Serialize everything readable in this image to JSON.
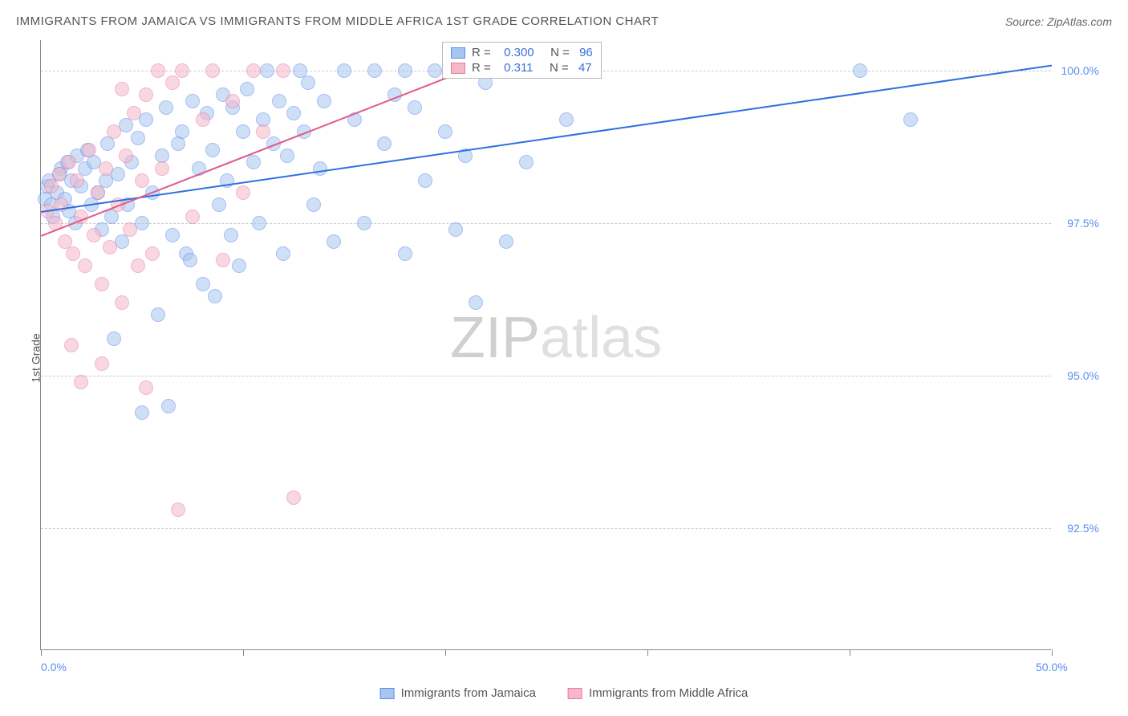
{
  "title": "IMMIGRANTS FROM JAMAICA VS IMMIGRANTS FROM MIDDLE AFRICA 1ST GRADE CORRELATION CHART",
  "source": "Source: ZipAtlas.com",
  "y_axis_label": "1st Grade",
  "watermark_a": "ZIP",
  "watermark_b": "atlas",
  "chart": {
    "type": "scatter",
    "xlim": [
      0,
      50
    ],
    "ylim": [
      90.5,
      100.5
    ],
    "x_ticks": [
      0,
      10,
      20,
      30,
      40,
      50
    ],
    "x_tick_labels": {
      "0": "0.0%",
      "50": "50.0%"
    },
    "y_ticks": [
      92.5,
      95.0,
      97.5,
      100.0
    ],
    "y_tick_labels": [
      "92.5%",
      "95.0%",
      "97.5%",
      "100.0%"
    ],
    "grid_color": "#cccccc",
    "background_color": "#ffffff",
    "marker_radius": 9,
    "marker_opacity": 0.55,
    "series": [
      {
        "name": "Immigrants from Jamaica",
        "color_fill": "#a8c5f0",
        "color_stroke": "#5b8def",
        "r_label": "R =",
        "r_value": "0.300",
        "n_label": "N =",
        "n_value": "96",
        "trend": {
          "x0": 0,
          "y0": 97.7,
          "x1": 50,
          "y1": 100.1,
          "color": "#2f6fe0",
          "width": 2
        },
        "points": [
          [
            0.2,
            97.9
          ],
          [
            0.3,
            98.1
          ],
          [
            0.5,
            97.8
          ],
          [
            0.4,
            98.2
          ],
          [
            0.8,
            98.0
          ],
          [
            1.0,
            98.4
          ],
          [
            0.6,
            97.6
          ],
          [
            0.9,
            98.3
          ],
          [
            1.2,
            97.9
          ],
          [
            1.3,
            98.5
          ],
          [
            1.5,
            98.2
          ],
          [
            1.4,
            97.7
          ],
          [
            1.8,
            98.6
          ],
          [
            2.0,
            98.1
          ],
          [
            1.7,
            97.5
          ],
          [
            2.2,
            98.4
          ],
          [
            2.5,
            97.8
          ],
          [
            2.3,
            98.7
          ],
          [
            2.8,
            98.0
          ],
          [
            3.0,
            97.4
          ],
          [
            2.6,
            98.5
          ],
          [
            3.2,
            98.2
          ],
          [
            3.5,
            97.6
          ],
          [
            3.3,
            98.8
          ],
          [
            3.8,
            98.3
          ],
          [
            4.0,
            97.2
          ],
          [
            4.2,
            99.1
          ],
          [
            4.5,
            98.5
          ],
          [
            4.3,
            97.8
          ],
          [
            4.8,
            98.9
          ],
          [
            5.0,
            97.5
          ],
          [
            5.2,
            99.2
          ],
          [
            5.5,
            98.0
          ],
          [
            5.8,
            96.0
          ],
          [
            6.0,
            98.6
          ],
          [
            6.2,
            99.4
          ],
          [
            6.5,
            97.3
          ],
          [
            6.8,
            98.8
          ],
          [
            7.0,
            99.0
          ],
          [
            7.2,
            97.0
          ],
          [
            7.5,
            99.5
          ],
          [
            7.8,
            98.4
          ],
          [
            8.0,
            96.5
          ],
          [
            8.2,
            99.3
          ],
          [
            8.5,
            98.7
          ],
          [
            8.8,
            97.8
          ],
          [
            9.0,
            99.6
          ],
          [
            9.2,
            98.2
          ],
          [
            9.5,
            99.4
          ],
          [
            9.8,
            96.8
          ],
          [
            10.0,
            99.0
          ],
          [
            10.5,
            98.5
          ],
          [
            10.2,
            99.7
          ],
          [
            10.8,
            97.5
          ],
          [
            11.0,
            99.2
          ],
          [
            11.5,
            98.8
          ],
          [
            11.2,
            100.0
          ],
          [
            11.8,
            99.5
          ],
          [
            12.0,
            97.0
          ],
          [
            12.5,
            99.3
          ],
          [
            12.2,
            98.6
          ],
          [
            12.8,
            100.0
          ],
          [
            13.0,
            99.0
          ],
          [
            13.5,
            97.8
          ],
          [
            13.2,
            99.8
          ],
          [
            13.8,
            98.4
          ],
          [
            14.0,
            99.5
          ],
          [
            14.5,
            97.2
          ],
          [
            15.0,
            100.0
          ],
          [
            15.5,
            99.2
          ],
          [
            16.0,
            97.5
          ],
          [
            16.5,
            100.0
          ],
          [
            17.0,
            98.8
          ],
          [
            17.5,
            99.6
          ],
          [
            18.0,
            97.0
          ],
          [
            18.5,
            99.4
          ],
          [
            19.0,
            98.2
          ],
          [
            20.0,
            99.0
          ],
          [
            20.5,
            97.4
          ],
          [
            21.0,
            98.6
          ],
          [
            22.0,
            99.8
          ],
          [
            23.0,
            97.2
          ],
          [
            21.5,
            96.2
          ],
          [
            19.5,
            100.0
          ],
          [
            24.0,
            98.5
          ],
          [
            25.0,
            100.0
          ],
          [
            26.0,
            99.2
          ],
          [
            6.3,
            94.5
          ],
          [
            5.0,
            94.4
          ],
          [
            3.6,
            95.6
          ],
          [
            7.4,
            96.9
          ],
          [
            8.6,
            96.3
          ],
          [
            9.4,
            97.3
          ],
          [
            18.0,
            100.0
          ],
          [
            40.5,
            100.0
          ],
          [
            43.0,
            99.2
          ]
        ]
      },
      {
        "name": "Immigrants from Middle Africa",
        "color_fill": "#f5b8c8",
        "color_stroke": "#e87ba0",
        "r_label": "R =",
        "r_value": "0.311",
        "n_label": "N =",
        "n_value": "47",
        "trend": {
          "x0": 0,
          "y0": 97.3,
          "x1": 24,
          "y1": 100.4,
          "color": "#e05a8a",
          "width": 2
        },
        "points": [
          [
            0.3,
            97.7
          ],
          [
            0.5,
            98.1
          ],
          [
            0.7,
            97.5
          ],
          [
            0.9,
            98.3
          ],
          [
            1.0,
            97.8
          ],
          [
            1.2,
            97.2
          ],
          [
            1.4,
            98.5
          ],
          [
            1.6,
            97.0
          ],
          [
            1.8,
            98.2
          ],
          [
            2.0,
            97.6
          ],
          [
            2.2,
            96.8
          ],
          [
            2.4,
            98.7
          ],
          [
            2.6,
            97.3
          ],
          [
            2.8,
            98.0
          ],
          [
            3.0,
            96.5
          ],
          [
            3.2,
            98.4
          ],
          [
            3.4,
            97.1
          ],
          [
            3.6,
            99.0
          ],
          [
            3.8,
            97.8
          ],
          [
            4.0,
            96.2
          ],
          [
            4.2,
            98.6
          ],
          [
            4.4,
            97.4
          ],
          [
            4.6,
            99.3
          ],
          [
            4.8,
            96.8
          ],
          [
            5.0,
            98.2
          ],
          [
            5.2,
            99.6
          ],
          [
            5.5,
            97.0
          ],
          [
            5.8,
            100.0
          ],
          [
            6.0,
            98.4
          ],
          [
            6.5,
            99.8
          ],
          [
            7.0,
            100.0
          ],
          [
            7.5,
            97.6
          ],
          [
            8.0,
            99.2
          ],
          [
            8.5,
            100.0
          ],
          [
            9.0,
            96.9
          ],
          [
            9.5,
            99.5
          ],
          [
            10.0,
            98.0
          ],
          [
            10.5,
            100.0
          ],
          [
            11.0,
            99.0
          ],
          [
            12.0,
            100.0
          ],
          [
            12.5,
            93.0
          ],
          [
            5.2,
            94.8
          ],
          [
            4.0,
            99.7
          ],
          [
            6.8,
            92.8
          ],
          [
            3.0,
            95.2
          ],
          [
            2.0,
            94.9
          ],
          [
            1.5,
            95.5
          ]
        ]
      }
    ]
  },
  "bottom_legend": [
    {
      "label": "Immigrants from Jamaica",
      "fill": "#a8c5f0",
      "stroke": "#5b8def"
    },
    {
      "label": "Immigrants from Middle Africa",
      "fill": "#f5b8c8",
      "stroke": "#e87ba0"
    }
  ]
}
